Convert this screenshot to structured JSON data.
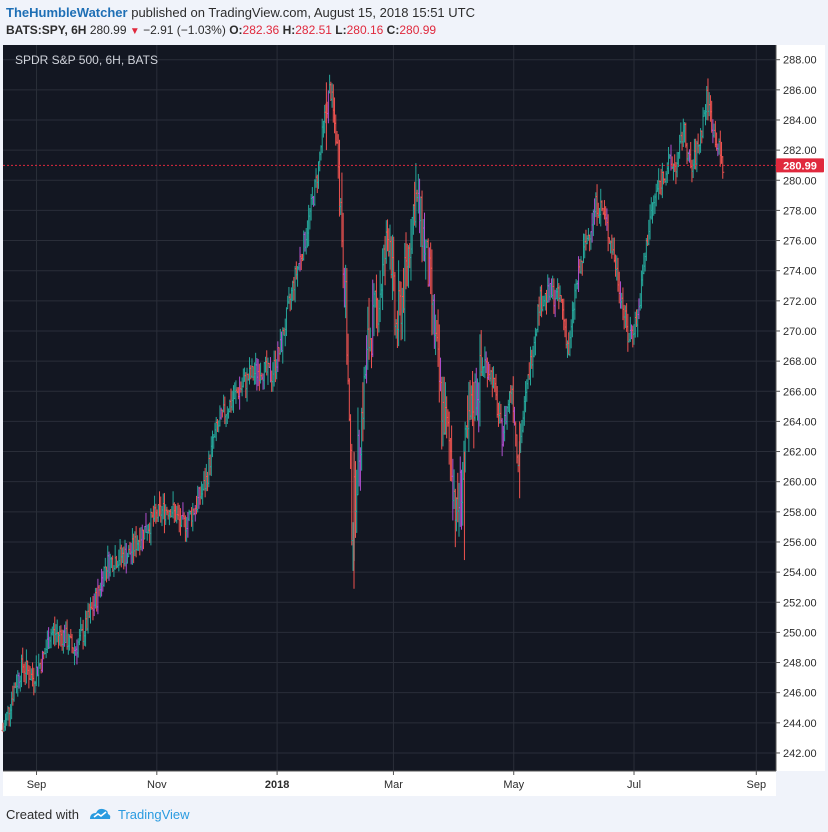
{
  "header": {
    "author": "TheHumbleWatcher",
    "published_text": "published on TradingView.com, August 15, 2018 15:51 UTC",
    "symbol": "BATS:SPY, 6H",
    "last": "280.99",
    "change": "−2.91 (−1.03%)",
    "o_label": "O:",
    "o_value": "282.36",
    "h_label": "H:",
    "h_value": "282.51",
    "l_label": "L:",
    "l_value": "280.16",
    "c_label": "C:",
    "c_value": "280.99"
  },
  "footer": {
    "created_with": "Created with",
    "brand": "TradingView"
  },
  "colors": {
    "background": "#131722",
    "grid": "#2a2e39",
    "up": "#26a69a",
    "down": "#ef5350",
    "neutral_up": "#b04fd0",
    "price_line": "#e0293d",
    "price_label_bg": "#e0293d"
  },
  "chart_data": {
    "type": "ohlc",
    "title": "SPDR S&P 500, 6H, BATS",
    "y_range": [
      241,
      289
    ],
    "y_ticks": [
      "288.00",
      "286.00",
      "284.00",
      "282.00",
      "280.00",
      "278.00",
      "276.00",
      "274.00",
      "272.00",
      "270.00",
      "268.00",
      "266.00",
      "264.00",
      "262.00",
      "260.00",
      "258.00",
      "256.00",
      "254.00",
      "252.00",
      "250.00",
      "248.00",
      "246.00",
      "244.00",
      "242.00"
    ],
    "x_ticks": [
      "Sep",
      "Nov",
      "2018",
      "Mar",
      "May",
      "Jul",
      "Sep"
    ],
    "x_tick_dates": [
      "2017-09-01",
      "2017-11-01",
      "2018-01-01",
      "2018-03-01",
      "2018-05-01",
      "2018-07-01",
      "2018-09-01"
    ],
    "current_price": 280.99,
    "current_price_label": "280.99",
    "price_path": [
      [
        "2017-08-15",
        243.5
      ],
      [
        "2017-08-21",
        246.5
      ],
      [
        "2017-08-25",
        247.8
      ],
      [
        "2017-08-30",
        247.0
      ],
      [
        "2017-09-05",
        248.5
      ],
      [
        "2017-09-08",
        250.0
      ],
      [
        "2017-09-15",
        249.8
      ],
      [
        "2017-09-20",
        248.8
      ],
      [
        "2017-09-25",
        250.0
      ],
      [
        "2017-10-02",
        252.5
      ],
      [
        "2017-10-06",
        254.5
      ],
      [
        "2017-10-12",
        255.0
      ],
      [
        "2017-10-18",
        255.2
      ],
      [
        "2017-10-24",
        256.5
      ],
      [
        "2017-10-30",
        257.5
      ],
      [
        "2017-11-03",
        258.0
      ],
      [
        "2017-11-08",
        258.3
      ],
      [
        "2017-11-14",
        257.0
      ],
      [
        "2017-11-20",
        258.2
      ],
      [
        "2017-11-26",
        260.0
      ],
      [
        "2017-11-30",
        263.0
      ],
      [
        "2017-12-05",
        264.5
      ],
      [
        "2017-12-11",
        265.8
      ],
      [
        "2017-12-18",
        267.0
      ],
      [
        "2017-12-24",
        267.5
      ],
      [
        "2017-12-29",
        267.0
      ],
      [
        "2018-01-03",
        269.0
      ],
      [
        "2018-01-09",
        273.0
      ],
      [
        "2018-01-15",
        276.0
      ],
      [
        "2018-01-21",
        280.0
      ],
      [
        "2018-01-25",
        284.0
      ],
      [
        "2018-01-28",
        286.2
      ],
      [
        "2018-02-01",
        281.5
      ],
      [
        "2018-02-05",
        271.0
      ],
      [
        "2018-02-08",
        257.0
      ],
      [
        "2018-02-12",
        263.0
      ],
      [
        "2018-02-16",
        269.0
      ],
      [
        "2018-02-22",
        272.5
      ],
      [
        "2018-02-27",
        277.0
      ],
      [
        "2018-03-02",
        270.0
      ],
      [
        "2018-03-06",
        272.5
      ],
      [
        "2018-03-12",
        279.0
      ],
      [
        "2018-03-16",
        276.5
      ],
      [
        "2018-03-20",
        272.5
      ],
      [
        "2018-03-25",
        265.5
      ],
      [
        "2018-03-30",
        262.0
      ],
      [
        "2018-04-02",
        257.5
      ],
      [
        "2018-04-06",
        261.5
      ],
      [
        "2018-04-10",
        265.0
      ],
      [
        "2018-04-16",
        268.0
      ],
      [
        "2018-04-20",
        267.0
      ],
      [
        "2018-04-25",
        263.0
      ],
      [
        "2018-04-30",
        266.5
      ],
      [
        "2018-05-03",
        261.5
      ],
      [
        "2018-05-08",
        266.5
      ],
      [
        "2018-05-14",
        272.0
      ],
      [
        "2018-05-20",
        272.5
      ],
      [
        "2018-05-25",
        272.0
      ],
      [
        "2018-05-29",
        268.5
      ],
      [
        "2018-06-01",
        272.5
      ],
      [
        "2018-06-06",
        275.5
      ],
      [
        "2018-06-12",
        278.5
      ],
      [
        "2018-06-15",
        278.0
      ],
      [
        "2018-06-20",
        275.5
      ],
      [
        "2018-06-25",
        272.0
      ],
      [
        "2018-06-28",
        269.5
      ],
      [
        "2018-07-03",
        271.0
      ],
      [
        "2018-07-09",
        277.5
      ],
      [
        "2018-07-13",
        279.5
      ],
      [
        "2018-07-18",
        281.0
      ],
      [
        "2018-07-23",
        281.0
      ],
      [
        "2018-07-26",
        283.5
      ],
      [
        "2018-07-30",
        280.5
      ],
      [
        "2018-08-03",
        282.5
      ],
      [
        "2018-08-07",
        285.5
      ],
      [
        "2018-08-10",
        283.5
      ],
      [
        "2018-08-15",
        281.0
      ]
    ]
  }
}
